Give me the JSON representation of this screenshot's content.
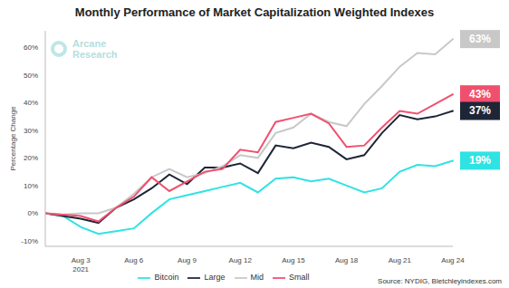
{
  "chart_data": {
    "type": "line",
    "title": "Monthly Performance of Market Capitalization Weighted Indexes",
    "logo": "Arcane Research",
    "source": "Source: NYDIG, Bletchleyindexes.com",
    "y_label": "Percentage Change",
    "categories": [
      null,
      null,
      "Aug 3\n2021",
      null,
      null,
      "Aug 6",
      null,
      null,
      "Aug 9",
      null,
      null,
      "Aug 12",
      null,
      null,
      "Aug 15",
      null,
      null,
      "Aug 18",
      null,
      null,
      "Aug 21",
      null,
      null,
      "Aug 24"
    ],
    "series": [
      {
        "name": "Bitcoin",
        "color": "#2fe3e3",
        "values": [
          0,
          -1,
          -5,
          -7.5,
          -6.5,
          -5.5,
          0,
          5,
          6.5,
          8,
          9.5,
          11,
          7.5,
          12.5,
          13,
          11.5,
          12.5,
          10,
          7.5,
          9,
          15,
          17.5,
          17,
          19
        ]
      },
      {
        "name": "Large",
        "color": "#1e2537",
        "values": [
          0,
          -1,
          -2,
          -3.5,
          2,
          5,
          9,
          14,
          10.5,
          16.5,
          16.5,
          18,
          14.5,
          24.5,
          23.5,
          25.5,
          24,
          19.5,
          21,
          29,
          35.5,
          34,
          35,
          37
        ]
      },
      {
        "name": "Mid",
        "color": "#c8c8c8",
        "values": [
          0,
          -0.5,
          0,
          0,
          2,
          7,
          13,
          16,
          13,
          14.5,
          17,
          21,
          20,
          29,
          31,
          36,
          33,
          31.5,
          39.5,
          46,
          53,
          58,
          57.5,
          63
        ]
      },
      {
        "name": "Small",
        "color": "#f0506e",
        "values": [
          0,
          -0.5,
          -1,
          -3,
          2,
          6,
          13,
          8,
          11.5,
          15,
          16,
          23,
          22,
          33,
          34.5,
          36,
          32.5,
          24,
          24.5,
          31,
          37,
          36,
          39.5,
          43
        ]
      }
    ],
    "annotations": [
      {
        "series": "Mid",
        "text": "63%"
      },
      {
        "series": "Small",
        "text": "43%"
      },
      {
        "series": "Large",
        "text": "37%"
      },
      {
        "series": "Bitcoin",
        "text": "19%"
      }
    ],
    "ylim": [
      -12,
      66
    ],
    "yticks": [
      {
        "value": -10,
        "label": "-10%"
      },
      {
        "value": 0,
        "label": "0%"
      },
      {
        "value": 10,
        "label": "10%"
      },
      {
        "value": 20,
        "label": "20%"
      },
      {
        "value": 30,
        "label": "30%"
      },
      {
        "value": 40,
        "label": "40%"
      },
      {
        "value": 50,
        "label": "50%"
      },
      {
        "value": 60,
        "label": "60%"
      }
    ],
    "grid": false,
    "legend": "bottom"
  }
}
